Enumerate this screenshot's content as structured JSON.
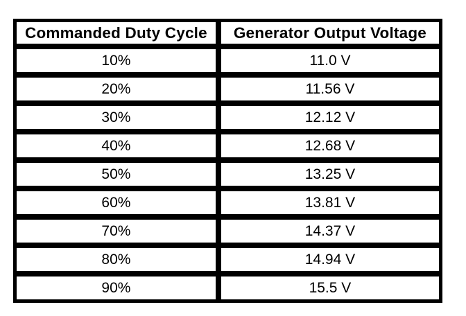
{
  "table": {
    "columns": [
      "Commanded Duty Cycle",
      "Generator Output Voltage"
    ],
    "rows": [
      {
        "duty_cycle": "10%",
        "voltage": "11.0 V"
      },
      {
        "duty_cycle": "20%",
        "voltage": "11.56 V"
      },
      {
        "duty_cycle": "30%",
        "voltage": "12.12 V"
      },
      {
        "duty_cycle": "40%",
        "voltage": "12.68 V"
      },
      {
        "duty_cycle": "50%",
        "voltage": "13.25 V"
      },
      {
        "duty_cycle": "60%",
        "voltage": "13.81 V"
      },
      {
        "duty_cycle": "70%",
        "voltage": "14.37 V"
      },
      {
        "duty_cycle": "80%",
        "voltage": "14.94 V"
      },
      {
        "duty_cycle": "90%",
        "voltage": "15.5 V"
      }
    ]
  },
  "chart_data": {
    "type": "table",
    "title": "",
    "columns": [
      "Commanded Duty Cycle",
      "Generator Output Voltage"
    ],
    "rows": [
      [
        "10%",
        "11.0 V"
      ],
      [
        "20%",
        "11.56 V"
      ],
      [
        "30%",
        "12.12 V"
      ],
      [
        "40%",
        "12.68 V"
      ],
      [
        "50%",
        "13.25 V"
      ],
      [
        "60%",
        "13.81 V"
      ],
      [
        "70%",
        "14.37 V"
      ],
      [
        "80%",
        "14.94 V"
      ],
      [
        "90%",
        "15.5 V"
      ]
    ],
    "duty_cycle_percent": [
      10,
      20,
      30,
      40,
      50,
      60,
      70,
      80,
      90
    ],
    "generator_output_voltage_v": [
      11.0,
      11.56,
      12.12,
      12.68,
      13.25,
      13.81,
      14.37,
      14.94,
      15.5
    ]
  },
  "colors": {
    "border": "#000000",
    "background": "#ffffff",
    "text": "#000000"
  }
}
